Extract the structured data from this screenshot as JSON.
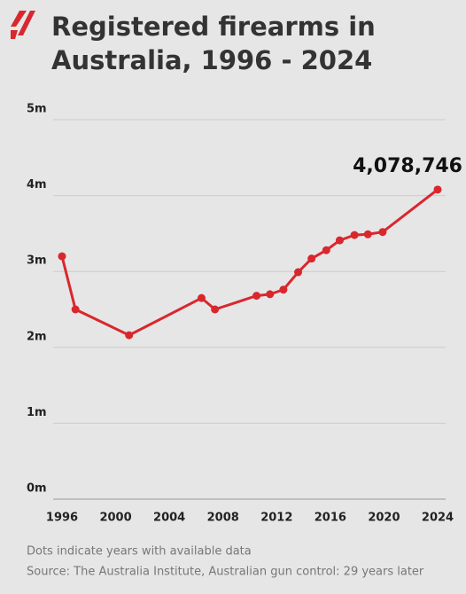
{
  "chart_data": {
    "type": "line",
    "title": [
      "Registered firearms in",
      "Australia, 1996 - 2024"
    ],
    "notes": [
      "Dots indicate years with available data",
      "Source: The Australia Institute, Australian gun control: 29 years later"
    ],
    "series": [
      {
        "color": "#d9272e",
        "x": [
          1996,
          1997,
          2001,
          2006.4,
          2007.4,
          2010.5,
          2011.5,
          2012.5,
          2013.6,
          2014.6,
          2015.7,
          2016.7,
          2017.8,
          2018.8,
          2019.9,
          2024
        ],
        "values": [
          3.2,
          2.5,
          2.16,
          2.65,
          2.5,
          2.68,
          2.7,
          2.76,
          2.99,
          3.17,
          3.28,
          3.41,
          3.48,
          3.49,
          3.52,
          4.078746
        ],
        "value_labels": [
          null,
          null,
          null,
          null,
          null,
          null,
          null,
          null,
          null,
          null,
          null,
          null,
          null,
          null,
          null,
          "4,078,746"
        ]
      }
    ],
    "xlim": [
      1996,
      2024
    ],
    "xticks": [
      1996,
      2000,
      2004,
      2008,
      2012,
      2016,
      2020,
      2024
    ],
    "ylim": [
      0,
      5
    ],
    "yticks": [
      {
        "value": 0,
        "label": "0m"
      },
      {
        "value": 1,
        "label": "1m"
      },
      {
        "value": 2,
        "label": "2m"
      },
      {
        "value": 3,
        "label": "3m"
      },
      {
        "value": 4,
        "label": "4m"
      },
      {
        "value": 5,
        "label": "5m"
      }
    ],
    "grid": true
  }
}
